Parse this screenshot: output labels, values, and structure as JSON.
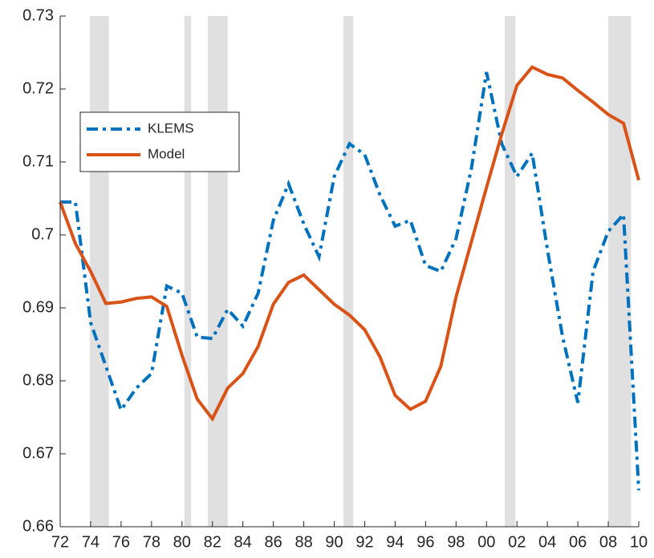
{
  "chart_data": {
    "type": "line",
    "x": [
      1972,
      1973,
      1974,
      1975,
      1976,
      1977,
      1978,
      1979,
      1980,
      1981,
      1982,
      1983,
      1984,
      1985,
      1986,
      1987,
      1988,
      1989,
      1990,
      1991,
      1992,
      1993,
      1994,
      1995,
      1996,
      1997,
      1998,
      1999,
      2000,
      2001,
      2002,
      2003,
      2004,
      2005,
      2006,
      2007,
      2008,
      2009,
      2010
    ],
    "series": [
      {
        "name": "KLEMS",
        "color": "#0072bd",
        "dash": "dashdot",
        "values": [
          0.7045,
          0.7045,
          0.688,
          0.682,
          0.676,
          0.679,
          0.681,
          0.693,
          0.692,
          0.686,
          0.6858,
          0.6898,
          0.6875,
          0.692,
          0.702,
          0.707,
          0.7015,
          0.697,
          0.708,
          0.7125,
          0.711,
          0.7055,
          0.7012,
          0.702,
          0.6958,
          0.695,
          0.6995,
          0.709,
          0.7223,
          0.7125,
          0.708,
          0.7112,
          0.698,
          0.686,
          0.677,
          0.695,
          0.7005,
          0.7028,
          0.665
        ]
      },
      {
        "name": "Model",
        "color": "#d95319",
        "dash": "solid",
        "values": [
          0.7045,
          0.6988,
          0.695,
          0.6906,
          0.6908,
          0.6913,
          0.6915,
          0.6902,
          0.6835,
          0.6775,
          0.6748,
          0.679,
          0.681,
          0.6847,
          0.6905,
          0.6935,
          0.6945,
          0.6925,
          0.6905,
          0.689,
          0.687,
          0.6833,
          0.678,
          0.6761,
          0.6772,
          0.682,
          0.6915,
          0.699,
          0.7065,
          0.7138,
          0.7205,
          0.723,
          0.722,
          0.7215,
          0.7198,
          0.7182,
          0.7165,
          0.7153,
          0.7075
        ]
      }
    ],
    "shaded_regions": [
      [
        1973.95,
        1975.2
      ],
      [
        1980.15,
        1980.6
      ],
      [
        1981.7,
        1983.0
      ],
      [
        1990.6,
        1991.25
      ],
      [
        2001.2,
        2001.9
      ],
      [
        2008.0,
        2009.5
      ]
    ],
    "shade_color": "#e0e0e0",
    "xlim": [
      1972,
      2010
    ],
    "xticks": [
      {
        "value": 1972,
        "label": "72"
      },
      {
        "value": 1974,
        "label": "74"
      },
      {
        "value": 1976,
        "label": "76"
      },
      {
        "value": 1978,
        "label": "78"
      },
      {
        "value": 1980,
        "label": "80"
      },
      {
        "value": 1982,
        "label": "82"
      },
      {
        "value": 1984,
        "label": "84"
      },
      {
        "value": 1986,
        "label": "86"
      },
      {
        "value": 1988,
        "label": "88"
      },
      {
        "value": 1990,
        "label": "90"
      },
      {
        "value": 1992,
        "label": "92"
      },
      {
        "value": 1994,
        "label": "94"
      },
      {
        "value": 1996,
        "label": "96"
      },
      {
        "value": 1998,
        "label": "98"
      },
      {
        "value": 2000,
        "label": "00"
      },
      {
        "value": 2002,
        "label": "02"
      },
      {
        "value": 2004,
        "label": "04"
      },
      {
        "value": 2006,
        "label": "06"
      },
      {
        "value": 2008,
        "label": "08"
      },
      {
        "value": 2010,
        "label": "10"
      }
    ],
    "ylim": [
      0.66,
      0.73
    ],
    "yticks": [
      0.66,
      0.67,
      0.68,
      0.69,
      0.7,
      0.71,
      0.72,
      0.73
    ],
    "grid": false,
    "legend": "upper-left"
  }
}
